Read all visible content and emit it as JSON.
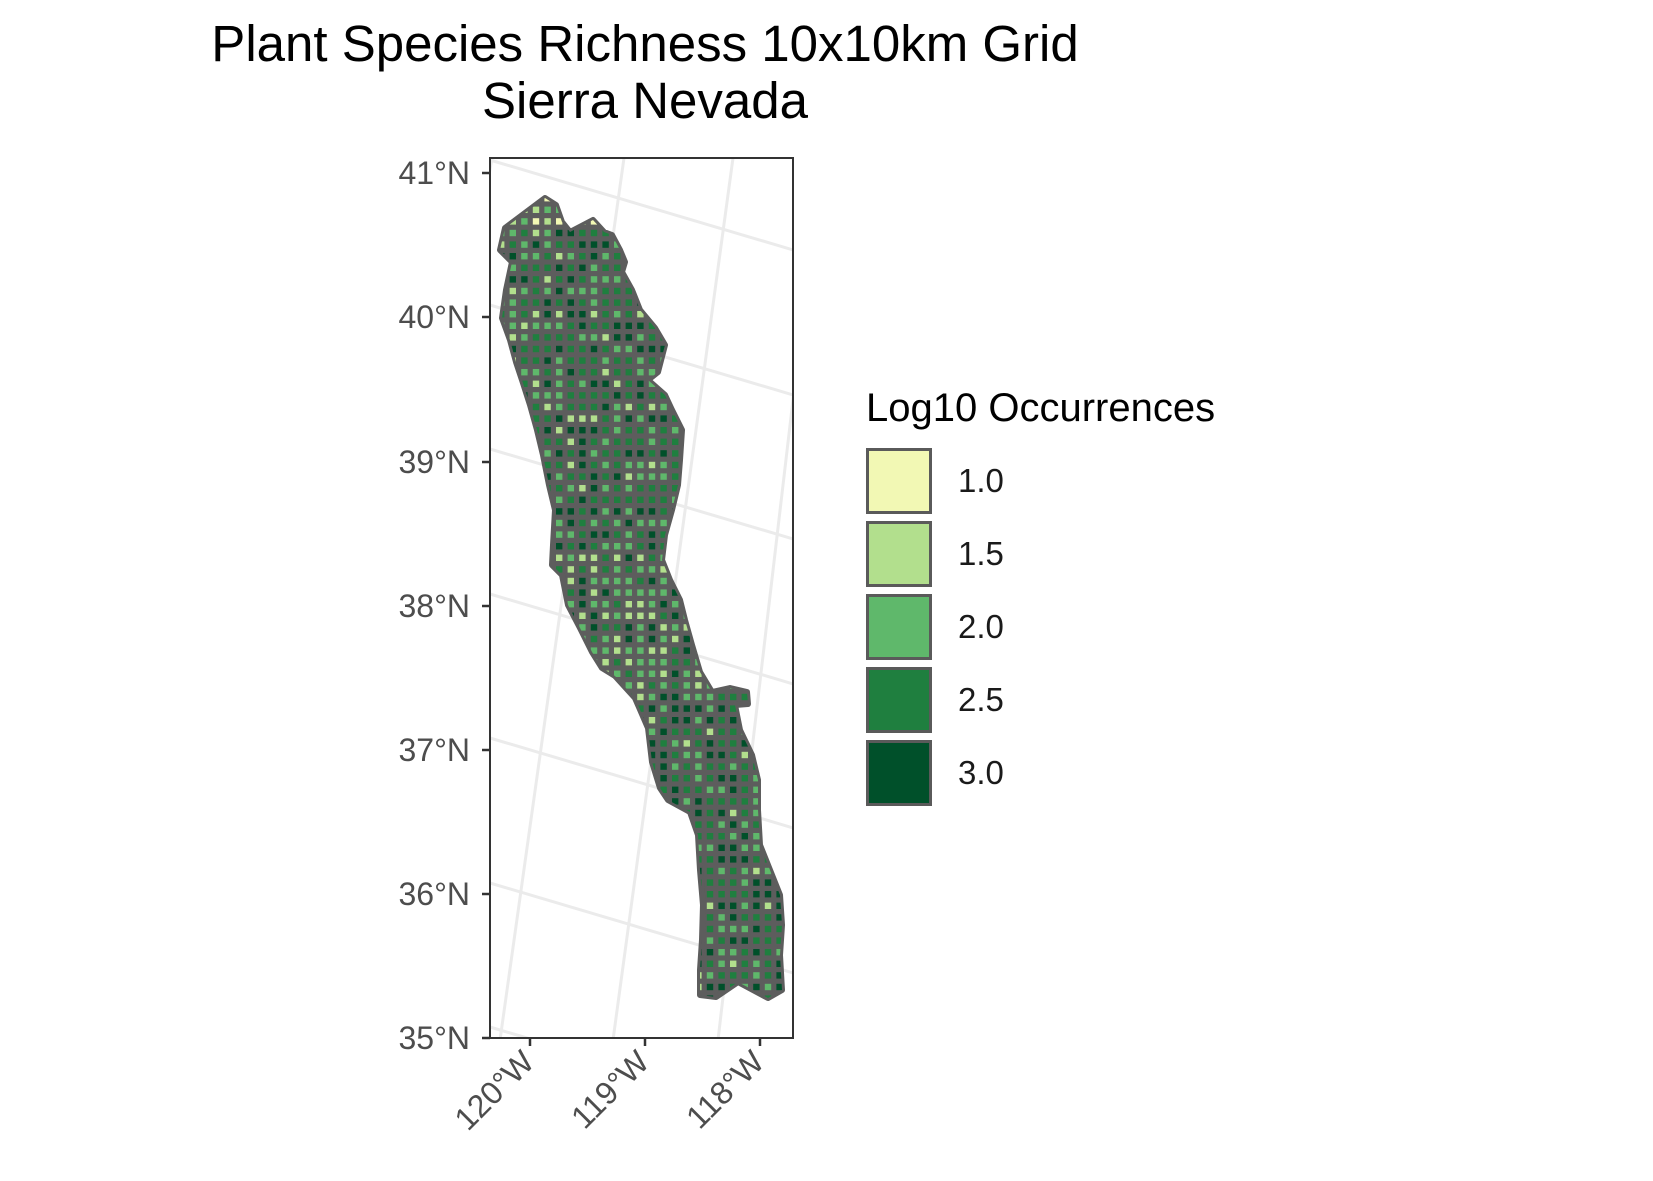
{
  "title": {
    "line1": "Plant Species Richness 10x10km Grid",
    "line2": "Sierra Nevada"
  },
  "map": {
    "y_ticks": [
      "41°N",
      "40°N",
      "39°N",
      "38°N",
      "37°N",
      "36°N",
      "35°N"
    ],
    "x_ticks": [
      "120°W",
      "119°W",
      "118°W"
    ],
    "region_fill": "#5d5d5d",
    "graticule_color": "#ebebeb",
    "panel_border_color": "#333333",
    "axis_text_color": "#4d4d4d"
  },
  "legend": {
    "title": "Log10 Occurrences",
    "items": [
      {
        "label": "1.0",
        "color": "#f2f8b4"
      },
      {
        "label": "1.5",
        "color": "#b2df8d"
      },
      {
        "label": "2.0",
        "color": "#5fb86b"
      },
      {
        "label": "2.5",
        "color": "#1f7f3f"
      },
      {
        "label": "3.0",
        "color": "#00502a"
      }
    ]
  }
}
